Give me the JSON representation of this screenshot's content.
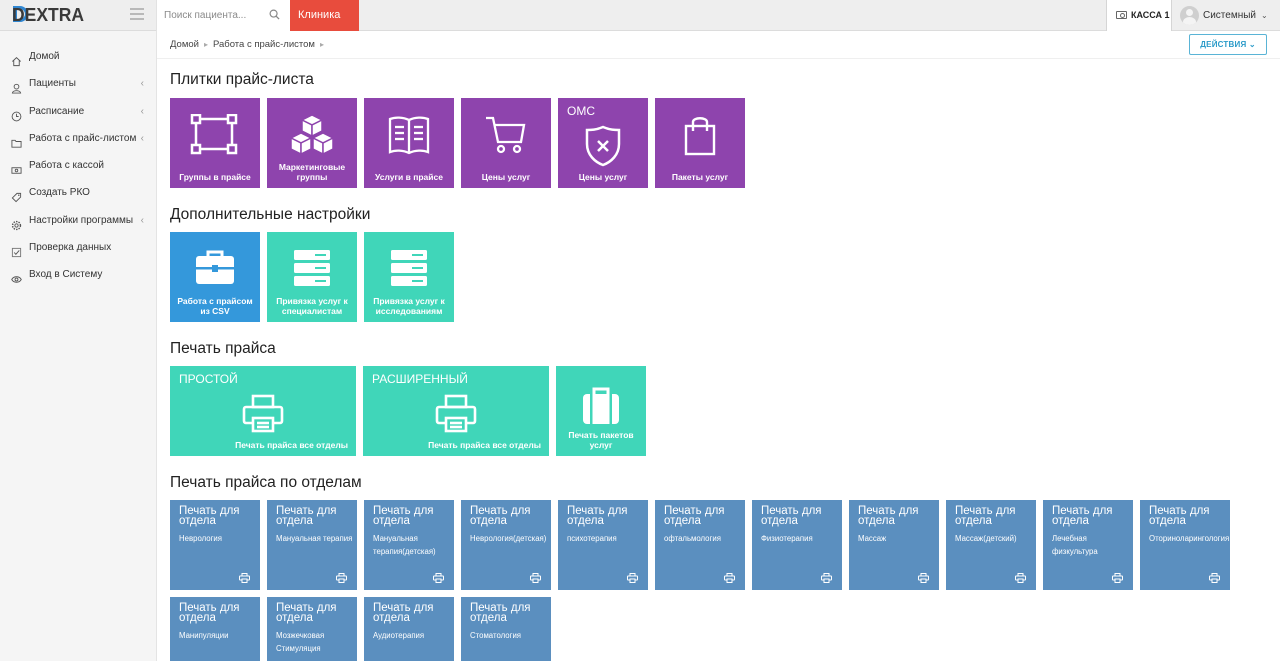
{
  "topbar": {
    "logo": "DEXTRA",
    "search_placeholder": "Поиск пациента...",
    "clinic": "Клиника",
    "kassa": "КАССА 1",
    "user": "Системный"
  },
  "sidebar": {
    "items": [
      {
        "label": "Домой",
        "icon": "home-icon",
        "arrow": false
      },
      {
        "label": "Пациенты",
        "icon": "user-icon",
        "arrow": true
      },
      {
        "label": "Расписание",
        "icon": "clock-icon",
        "arrow": true
      },
      {
        "label": "Работа с прайс-листом",
        "icon": "folder-icon",
        "arrow": true
      },
      {
        "label": "Работа с кассой",
        "icon": "cash-icon",
        "arrow": false
      },
      {
        "label": "Создать РКО",
        "icon": "tag-icon",
        "arrow": false
      },
      {
        "label": "Настройки программы",
        "icon": "gear-icon",
        "arrow": true
      },
      {
        "label": "Проверка данных",
        "icon": "checkbox-icon",
        "arrow": false
      },
      {
        "label": "Вход в Систему",
        "icon": "eye-icon",
        "arrow": false
      }
    ]
  },
  "breadcrumb": {
    "home": "Домой",
    "current": "Работа с прайс-листом"
  },
  "actions_label": "ДЕЙСТВИЯ",
  "sections": {
    "tiles": "Плитки прайс-листа",
    "extra": "Дополнительные настройки",
    "print": "Печать прайса",
    "print_dept": "Печать прайса по отделам"
  },
  "price_tiles": [
    {
      "label": "Группы в прайсе",
      "icon": "selection-icon"
    },
    {
      "label": "Маркетинговые группы",
      "icon": "cubes-icon"
    },
    {
      "label": "Услуги в прайсе",
      "icon": "book-icon"
    },
    {
      "label": "Цены услуг",
      "icon": "cart-icon"
    },
    {
      "label": "Цены услуг",
      "icon": "shield-x-icon",
      "corner": "ОМС"
    },
    {
      "label": "Пакеты услуг",
      "icon": "bag-icon"
    }
  ],
  "extra_tiles": [
    {
      "label": "Работа с прайсом из CSV",
      "icon": "briefcase-icon"
    },
    {
      "label": "Привязка услуг к специалистам",
      "icon": "server-icon"
    },
    {
      "label": "Привязка услуг к исследованиям",
      "icon": "server-icon"
    }
  ],
  "print_tiles": [
    {
      "corner": "ПРОСТОЙ",
      "label": "Печать прайса все отделы",
      "icon": "printer-icon"
    },
    {
      "corner": "РАСШИРЕННЫЙ",
      "label": "Печать прайса все отделы",
      "icon": "printer-icon"
    },
    {
      "label": "Печать пакетов услуг",
      "icon": "suitcase-icon"
    }
  ],
  "dept_title": "Печать для отдела",
  "departments": [
    "Неврология",
    "Мануальная терапия",
    "Мануальная терапия(детская)",
    "Неврология(детская)",
    "психотерапия",
    "офтальмология",
    "Физиотерапия",
    "Массаж",
    "Массаж(детский)",
    "Лечебная физкультура",
    "Оториноларингология",
    "Манипуляции",
    "Мозжечковая Стимуляция",
    "Аудиотерапия",
    "Стоматология"
  ]
}
